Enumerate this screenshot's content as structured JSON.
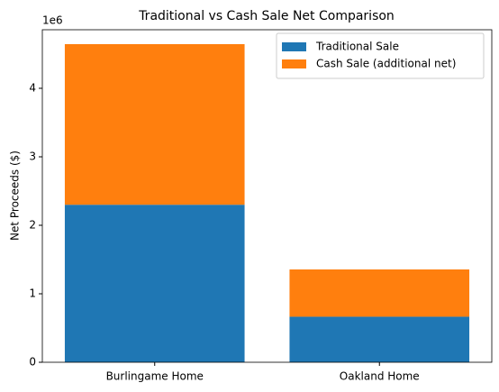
{
  "chart_data": {
    "type": "stacked_bar",
    "title": "Traditional vs Cash Sale Net Comparison",
    "ylabel": "Net Proceeds ($)",
    "y_offset_label": "1e6",
    "categories": [
      "Burlingame Home",
      "Oakland Home"
    ],
    "series": [
      {
        "name": "Traditional Sale",
        "color": "#1f77b4",
        "values": [
          2300000,
          665000
        ]
      },
      {
        "name": "Cash Sale (additional net)",
        "color": "#ff7f0e",
        "values": [
          2345000,
          690000
        ]
      }
    ],
    "ylim": [
      0,
      4855000
    ],
    "yticks": [
      0,
      {
        "value": 1000000,
        "label": "1"
      },
      {
        "value": 2000000,
        "label": "2"
      },
      {
        "value": 3000000,
        "label": "3"
      },
      {
        "value": 4000000,
        "label": "4"
      }
    ],
    "legend": "upper right",
    "grid": false
  }
}
